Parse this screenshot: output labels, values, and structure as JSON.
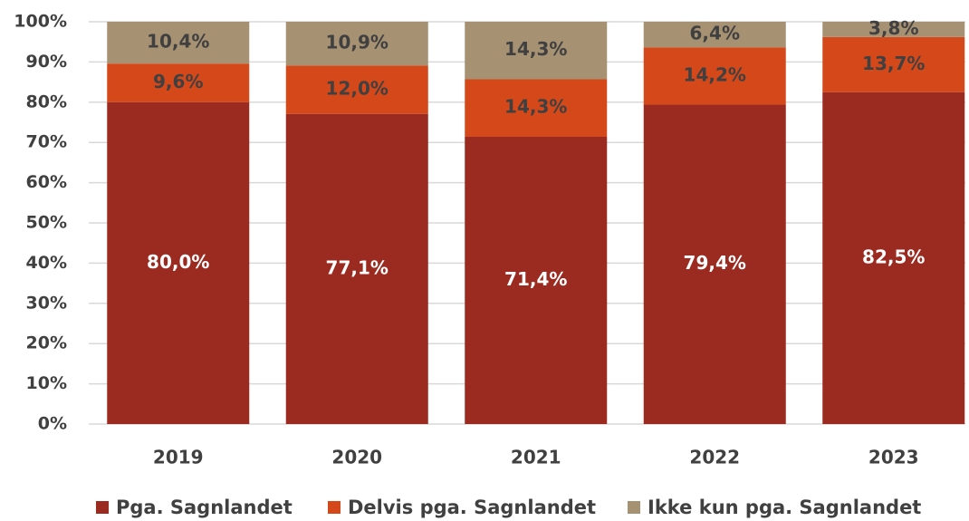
{
  "chart_data": {
    "type": "stacked_bar",
    "categories": [
      "2019",
      "2020",
      "2021",
      "2022",
      "2023"
    ],
    "series": [
      {
        "name": "Pga. Sagnlandet",
        "color": "#9b2a20",
        "values": [
          80.0,
          77.1,
          71.4,
          79.4,
          82.5
        ],
        "value_labels": [
          "80,0%",
          "77,1%",
          "71,4%",
          "79,4%",
          "82,5%"
        ]
      },
      {
        "name": "Delvis pga. Sagnlandet",
        "color": "#d4481a",
        "values": [
          9.6,
          12.0,
          14.3,
          14.2,
          13.7
        ],
        "value_labels": [
          "9,6%",
          "12,0%",
          "14,3%",
          "14,2%",
          "13,7%"
        ]
      },
      {
        "name": "Ikke kun pga. Sagnlandet",
        "color": "#a69172",
        "values": [
          10.4,
          10.9,
          14.3,
          6.4,
          3.8
        ],
        "value_labels": [
          "10,4%",
          "10,9%",
          "14,3%",
          "6,4%",
          "3,8%"
        ]
      }
    ],
    "ylim": [
      0,
      100
    ],
    "yticks": [
      {
        "value": 0,
        "label": "0%"
      },
      {
        "value": 10,
        "label": "10%"
      },
      {
        "value": 20,
        "label": "20%"
      },
      {
        "value": 30,
        "label": "30%"
      },
      {
        "value": 40,
        "label": "40%"
      },
      {
        "value": 50,
        "label": "50%"
      },
      {
        "value": 60,
        "label": "60%"
      },
      {
        "value": 70,
        "label": "70%"
      },
      {
        "value": 80,
        "label": "80%"
      },
      {
        "value": 90,
        "label": "90%"
      },
      {
        "value": 100,
        "label": "100%"
      }
    ],
    "grid": true,
    "legend": "bottom"
  }
}
